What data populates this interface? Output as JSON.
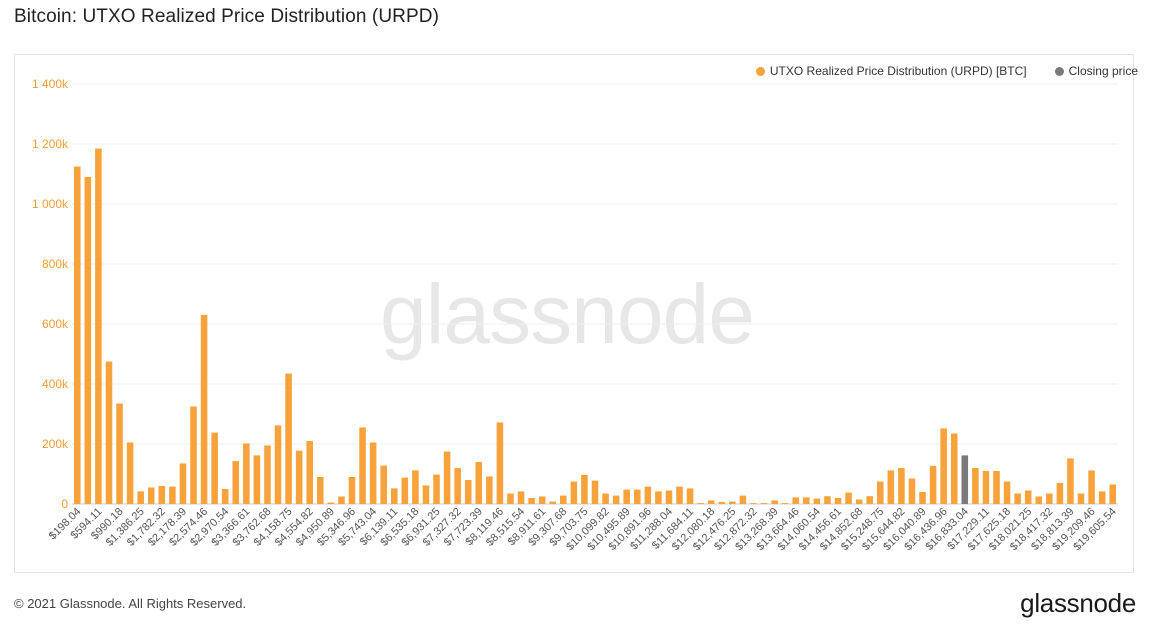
{
  "header": {
    "title": "Bitcoin: UTXO Realized Price Distribution (URPD)"
  },
  "legend": {
    "items": [
      {
        "label": "UTXO Realized Price Distribution (URPD) [BTC]",
        "color": "#f7a23b"
      },
      {
        "label": "Closing price",
        "color": "#7a7a7a"
      }
    ]
  },
  "watermark": "glassnode",
  "footer": {
    "copyright": "© 2021 Glassnode. All Rights Reserved.",
    "logo": "glassnode"
  },
  "chart_data": {
    "type": "bar",
    "title": "Bitcoin: UTXO Realized Price Distribution (URPD)",
    "xlabel": "",
    "ylabel": "",
    "ylim": [
      0,
      1400000
    ],
    "yticks": [
      0,
      200000,
      400000,
      600000,
      800000,
      1000000,
      1200000,
      1400000
    ],
    "ytick_labels": [
      "0",
      "200k",
      "400k",
      "600k",
      "800k",
      "1 000k",
      "1 200k",
      "1 400k"
    ],
    "grid": true,
    "legend_position": "top-right",
    "bar_color": "#f7a23b",
    "highlight_color": "#7a7a7a",
    "closing_price_index": 84,
    "x_tick_labels": [
      "$198.04",
      "$594.11",
      "$990.18",
      "$1,386.25",
      "$1,782.32",
      "$2,178.39",
      "$2,574.46",
      "$2,970.54",
      "$3,366.61",
      "$3,762.68",
      "$4,158.75",
      "$4,554.82",
      "$4,950.89",
      "$5,346.96",
      "$5,743.04",
      "$6,139.11",
      "$6,535.18",
      "$6,931.25",
      "$7,327.32",
      "$7,723.39",
      "$8,119.46",
      "$8,515.54",
      "$8,911.61",
      "$9,307.68",
      "$9,703.75",
      "$10,099.82",
      "$10,495.89",
      "$10,891.96",
      "$11,288.04",
      "$11,684.11",
      "$12,080.18",
      "$12,476.25",
      "$12,872.32",
      "$13,268.39",
      "$13,664.46",
      "$14,060.54",
      "$14,456.61",
      "$14,852.68",
      "$15,248.75",
      "$15,644.82",
      "$16,040.89",
      "$16,436.96",
      "$16,833.04",
      "$17,229.11",
      "$17,625.18",
      "$18,021.25",
      "$18,417.32",
      "$18,813.39",
      "$19,209.46",
      "$19,605.54"
    ],
    "values": [
      1125000,
      1090000,
      1185000,
      475000,
      335000,
      205000,
      42000,
      55000,
      60000,
      58000,
      135000,
      325000,
      630000,
      238000,
      50000,
      143000,
      202000,
      162000,
      195000,
      262000,
      435000,
      178000,
      210000,
      90000,
      5000,
      25000,
      90000,
      255000,
      205000,
      128000,
      52000,
      88000,
      112000,
      62000,
      98000,
      175000,
      120000,
      80000,
      140000,
      92000,
      272000,
      35000,
      42000,
      20000,
      25000,
      8000,
      28000,
      75000,
      97000,
      78000,
      35000,
      28000,
      48000,
      48000,
      58000,
      42000,
      45000,
      58000,
      52000,
      3000,
      12000,
      7000,
      8000,
      28000,
      3000,
      3000,
      12000,
      3000,
      22000,
      22000,
      18000,
      26000,
      20000,
      38000,
      15000,
      26000,
      75000,
      112000,
      120000,
      85000,
      40000,
      127000,
      252000,
      235000,
      162000,
      120000,
      110000,
      110000,
      75000,
      35000,
      45000,
      25000,
      35000,
      70000,
      152000,
      35000,
      112000,
      42000,
      65000
    ]
  }
}
